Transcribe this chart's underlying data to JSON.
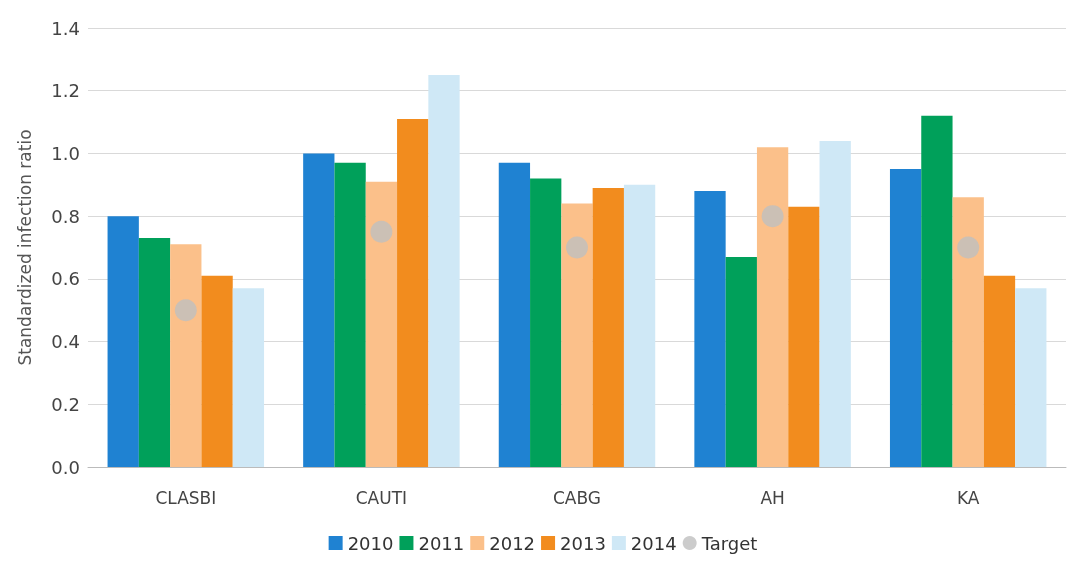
{
  "chart_data": {
    "type": "bar",
    "ylabel": "Standardized infection ratio",
    "categories": [
      "CLASBI",
      "CAUTI",
      "CABG",
      "AH",
      "KA"
    ],
    "series": [
      {
        "name": "2010",
        "color": "#1f82d2",
        "values": [
          0.8,
          1.0,
          0.97,
          0.88,
          0.95
        ]
      },
      {
        "name": "2011",
        "color": "#00a05a",
        "values": [
          0.73,
          0.97,
          0.92,
          0.67,
          1.12
        ]
      },
      {
        "name": "2012",
        "color": "#fbc08a",
        "values": [
          0.71,
          0.91,
          0.84,
          1.02,
          0.86
        ]
      },
      {
        "name": "2013",
        "color": "#f28c1e",
        "values": [
          0.61,
          1.11,
          0.89,
          0.83,
          0.61
        ]
      },
      {
        "name": "2014",
        "color": "#cfe8f6",
        "values": [
          0.57,
          1.25,
          0.9,
          1.04,
          0.57
        ]
      },
      {
        "name": "Target",
        "type": "scatter",
        "color": "#bfbfbf",
        "marker": "circle",
        "x": [
          "CLASBI",
          "CAUTI",
          "CABG",
          "AH",
          "KA"
        ],
        "values": [
          0.5,
          0.75,
          0.7,
          0.8,
          0.7
        ]
      }
    ],
    "ylim": [
      0,
      1.4
    ],
    "yticks": [
      {
        "value": 0,
        "label": "0.0"
      },
      {
        "value": 0.2,
        "label": "0.2"
      },
      {
        "value": 0.4,
        "label": "0.4"
      },
      {
        "value": 0.6,
        "label": "0.6"
      },
      {
        "value": 0.8,
        "label": "0.8"
      },
      {
        "value": 1.0,
        "label": "1.0"
      },
      {
        "value": 1.2,
        "label": "1.2"
      },
      {
        "value": 1.4,
        "label": "1.4"
      }
    ],
    "grid": "y",
    "legend": "bottom"
  }
}
